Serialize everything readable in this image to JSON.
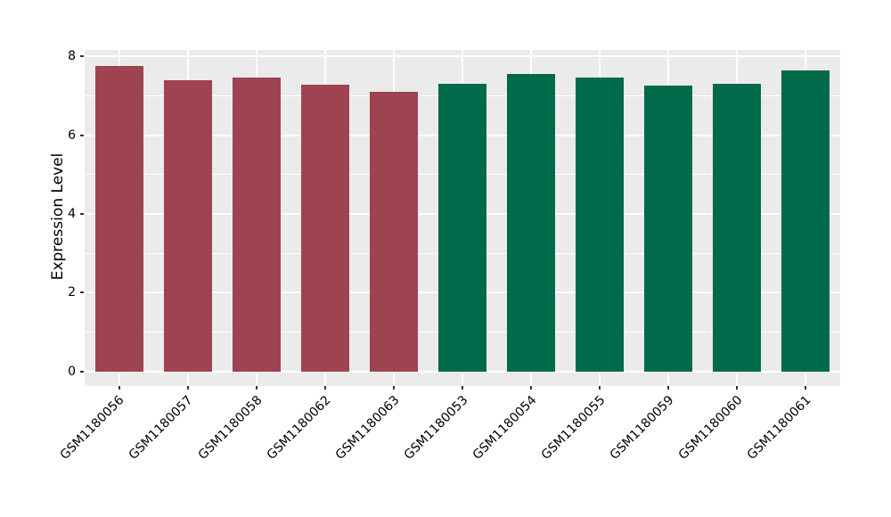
{
  "chart_data": {
    "type": "bar",
    "title": "",
    "xlabel": "",
    "ylabel": "Expression Level",
    "categories": [
      "GSM1180056",
      "GSM1180057",
      "GSM1180058",
      "GSM1180062",
      "GSM1180063",
      "GSM1180053",
      "GSM1180054",
      "GSM1180055",
      "GSM1180059",
      "GSM1180060",
      "GSM1180061"
    ],
    "values": [
      7.75,
      7.4,
      7.46,
      7.29,
      7.1,
      7.31,
      7.56,
      7.46,
      7.25,
      7.31,
      7.64
    ],
    "bar_colors": [
      "#9e4352",
      "#9e4352",
      "#9e4352",
      "#9e4352",
      "#9e4352",
      "#016a4a",
      "#016a4a",
      "#016a4a",
      "#016a4a",
      "#016a4a",
      "#016a4a"
    ],
    "ylim": [
      0,
      8.16
    ],
    "yticks": [
      0,
      2,
      4,
      6,
      8
    ],
    "minor_yticks": [
      1,
      3,
      5,
      7
    ],
    "grid": true,
    "legend_position": "none",
    "plot_bg_color": "#ebebeb",
    "grid_color": "#ffffff",
    "tick_text_color": "#000000",
    "axis_title_color": "#000000"
  }
}
